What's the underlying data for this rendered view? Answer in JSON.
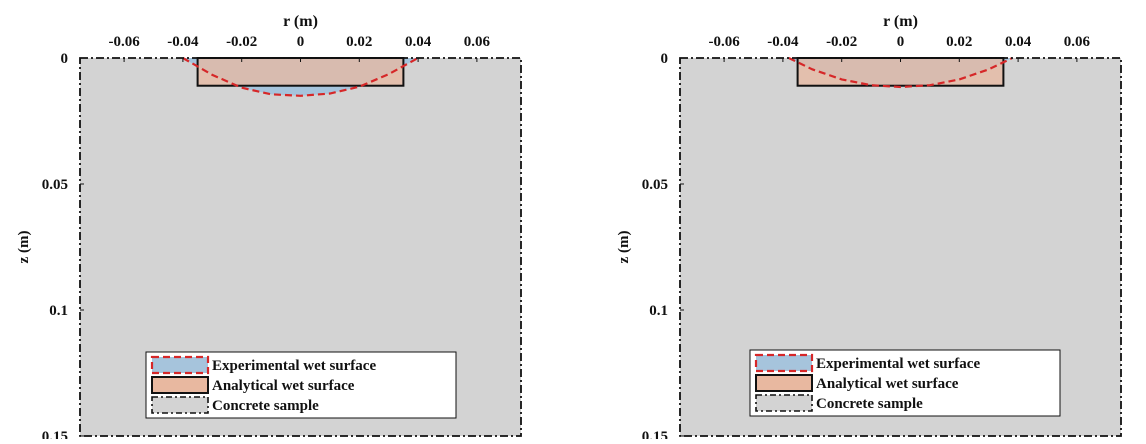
{
  "chart_data": [
    {
      "type": "area",
      "panel": "left",
      "xlabel": "r (m)",
      "ylabel": "z (m)",
      "xlim": [
        -0.075,
        0.075
      ],
      "ylim": [
        0,
        0.15
      ],
      "y_inverted": true,
      "x_axis_position": "top",
      "xticks": [
        -0.06,
        -0.04,
        -0.02,
        0,
        0.02,
        0.04,
        0.06
      ],
      "xtick_labels": [
        "-0.06",
        "-0.04",
        "-0.02",
        "0",
        "0.02",
        "0.04",
        "0.06"
      ],
      "yticks": [
        0,
        0.05,
        0.1,
        0.15
      ],
      "ytick_labels": [
        "0",
        "0.05",
        "0.1",
        "0.15"
      ],
      "concrete_sample": {
        "r_range": [
          -0.075,
          0.075
        ],
        "z_range": [
          0,
          0.15
        ]
      },
      "analytical_wet_surface": {
        "r_range": [
          -0.035,
          0.035
        ],
        "z_range": [
          0,
          0.011
        ]
      },
      "experimental_wet_surface": {
        "r": [
          -0.04,
          -0.03,
          -0.02,
          -0.01,
          0,
          0.01,
          0.02,
          0.03,
          0.04
        ],
        "z": [
          0,
          0.0067,
          0.0118,
          0.0144,
          0.015,
          0.0141,
          0.0114,
          0.0064,
          0
        ]
      },
      "legend": {
        "placement": "bottom-center",
        "entries": [
          "Experimental wet surface",
          "Analytical wet surface",
          "Concrete sample"
        ]
      },
      "colors": {
        "concrete": "#d3d3d3",
        "experimental_fill": "#a6c4dc",
        "experimental_edge": "#d62728",
        "analytical_fill": "#e8b8a0",
        "analytical_edge": "#111111",
        "frame": "#111111"
      }
    },
    {
      "type": "area",
      "panel": "right",
      "xlabel": "r (m)",
      "ylabel": "z (m)",
      "xlim": [
        -0.075,
        0.075
      ],
      "ylim": [
        0,
        0.15
      ],
      "y_inverted": true,
      "x_axis_position": "top",
      "xticks": [
        -0.06,
        -0.04,
        -0.02,
        0,
        0.02,
        0.04,
        0.06
      ],
      "xtick_labels": [
        "-0.06",
        "-0.04",
        "-0.02",
        "0",
        "0.02",
        "0.04",
        "0.06"
      ],
      "yticks": [
        0,
        0.05,
        0.1,
        0.15
      ],
      "ytick_labels": [
        "0",
        "0.05",
        "0.1",
        "0.15"
      ],
      "concrete_sample": {
        "r_range": [
          -0.075,
          0.075
        ],
        "z_range": [
          0,
          0.15
        ]
      },
      "analytical_wet_surface": {
        "r_range": [
          -0.035,
          0.035
        ],
        "z_range": [
          0,
          0.011
        ]
      },
      "experimental_wet_surface": {
        "r": [
          -0.038,
          -0.03,
          -0.02,
          -0.01,
          0,
          0.01,
          0.02,
          0.03,
          0.038
        ],
        "z": [
          0,
          0.0045,
          0.0085,
          0.0108,
          0.0115,
          0.0108,
          0.0085,
          0.0045,
          0
        ]
      },
      "legend": {
        "placement": "bottom-center",
        "entries": [
          "Experimental wet surface",
          "Analytical wet surface",
          "Concrete sample"
        ]
      },
      "colors": {
        "concrete": "#d3d3d3",
        "experimental_fill": "#a6c4dc",
        "experimental_edge": "#d62728",
        "analytical_fill": "#e8b8a0",
        "analytical_edge": "#111111",
        "frame": "#111111"
      }
    }
  ]
}
